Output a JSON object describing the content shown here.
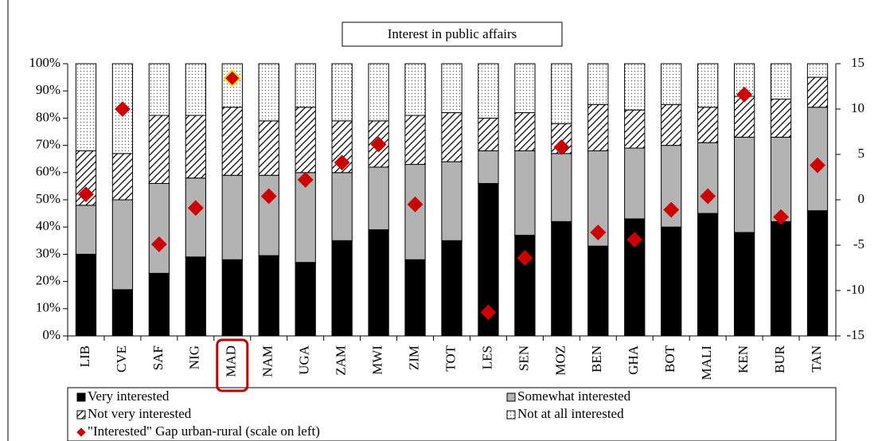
{
  "chart_data": {
    "type": "stacked_bar",
    "title": "Interest in public affairs",
    "categories": [
      "LIB",
      "CVE",
      "SAF",
      "NIG",
      "MAD",
      "NAM",
      "UGA",
      "ZAM",
      "MWI",
      "ZIM",
      "TOT",
      "LES",
      "SEN",
      "MOZ",
      "BEN",
      "GHA",
      "BOT",
      "MALI",
      "KEN",
      "BUR",
      "TAN"
    ],
    "highlight": "MAD",
    "series": [
      {
        "name": "Very interested",
        "color": "#000000",
        "pattern": "solid",
        "values": [
          30,
          17,
          23,
          29,
          28,
          29.5,
          27,
          35,
          39,
          28,
          35,
          56,
          37,
          42,
          33,
          43,
          40,
          45,
          38,
          42,
          46
        ]
      },
      {
        "name": "Somewhat interested",
        "color": "#b3b3b3",
        "pattern": "solid",
        "values": [
          18,
          33,
          33,
          29,
          31,
          29.5,
          33,
          25,
          23,
          35,
          29,
          12,
          31,
          25,
          35,
          26,
          30,
          26,
          35,
          31,
          38
        ]
      },
      {
        "name": "Not very interested",
        "color": "#000000",
        "pattern": "hatch",
        "values": [
          20,
          17,
          25,
          23,
          25,
          20,
          24,
          19,
          17,
          18,
          18,
          12,
          14,
          11,
          17,
          14,
          15,
          13,
          15,
          14,
          11
        ]
      },
      {
        "name": "Not at all interested",
        "color": "#000000",
        "pattern": "dots",
        "values": [
          32,
          33,
          19,
          19,
          16,
          21,
          16,
          21,
          21,
          19,
          18,
          20,
          18,
          22,
          15,
          17,
          15,
          16,
          12,
          13,
          5
        ]
      },
      {
        "name": "\"Interested\" Gap urban-rural (scale on left)",
        "color": "#cc0000",
        "type": "diamond",
        "axis": "y2",
        "values": [
          0.6,
          10,
          -4.9,
          -0.9,
          13.4,
          0.4,
          2.2,
          4.1,
          6.1,
          -0.5,
          null,
          -12.4,
          -6.4,
          5.8,
          -3.6,
          -4.4,
          -1.1,
          0.4,
          11.6,
          -1.9,
          3.8
        ]
      }
    ],
    "ylim": [
      0,
      100
    ],
    "yticks": [
      {
        "value": 0,
        "label": "0%"
      },
      {
        "value": 10,
        "label": "10%"
      },
      {
        "value": 20,
        "label": "20%"
      },
      {
        "value": 30,
        "label": "30%"
      },
      {
        "value": 40,
        "label": "40%"
      },
      {
        "value": 50,
        "label": "50%"
      },
      {
        "value": 60,
        "label": "60%"
      },
      {
        "value": 70,
        "label": "70%"
      },
      {
        "value": 80,
        "label": "80%"
      },
      {
        "value": 90,
        "label": "90%"
      },
      {
        "value": 100,
        "label": "100%"
      }
    ],
    "y2lim": [
      -15,
      15
    ],
    "y2ticks": [
      -15,
      -10,
      -5,
      0,
      5,
      10,
      15
    ]
  }
}
